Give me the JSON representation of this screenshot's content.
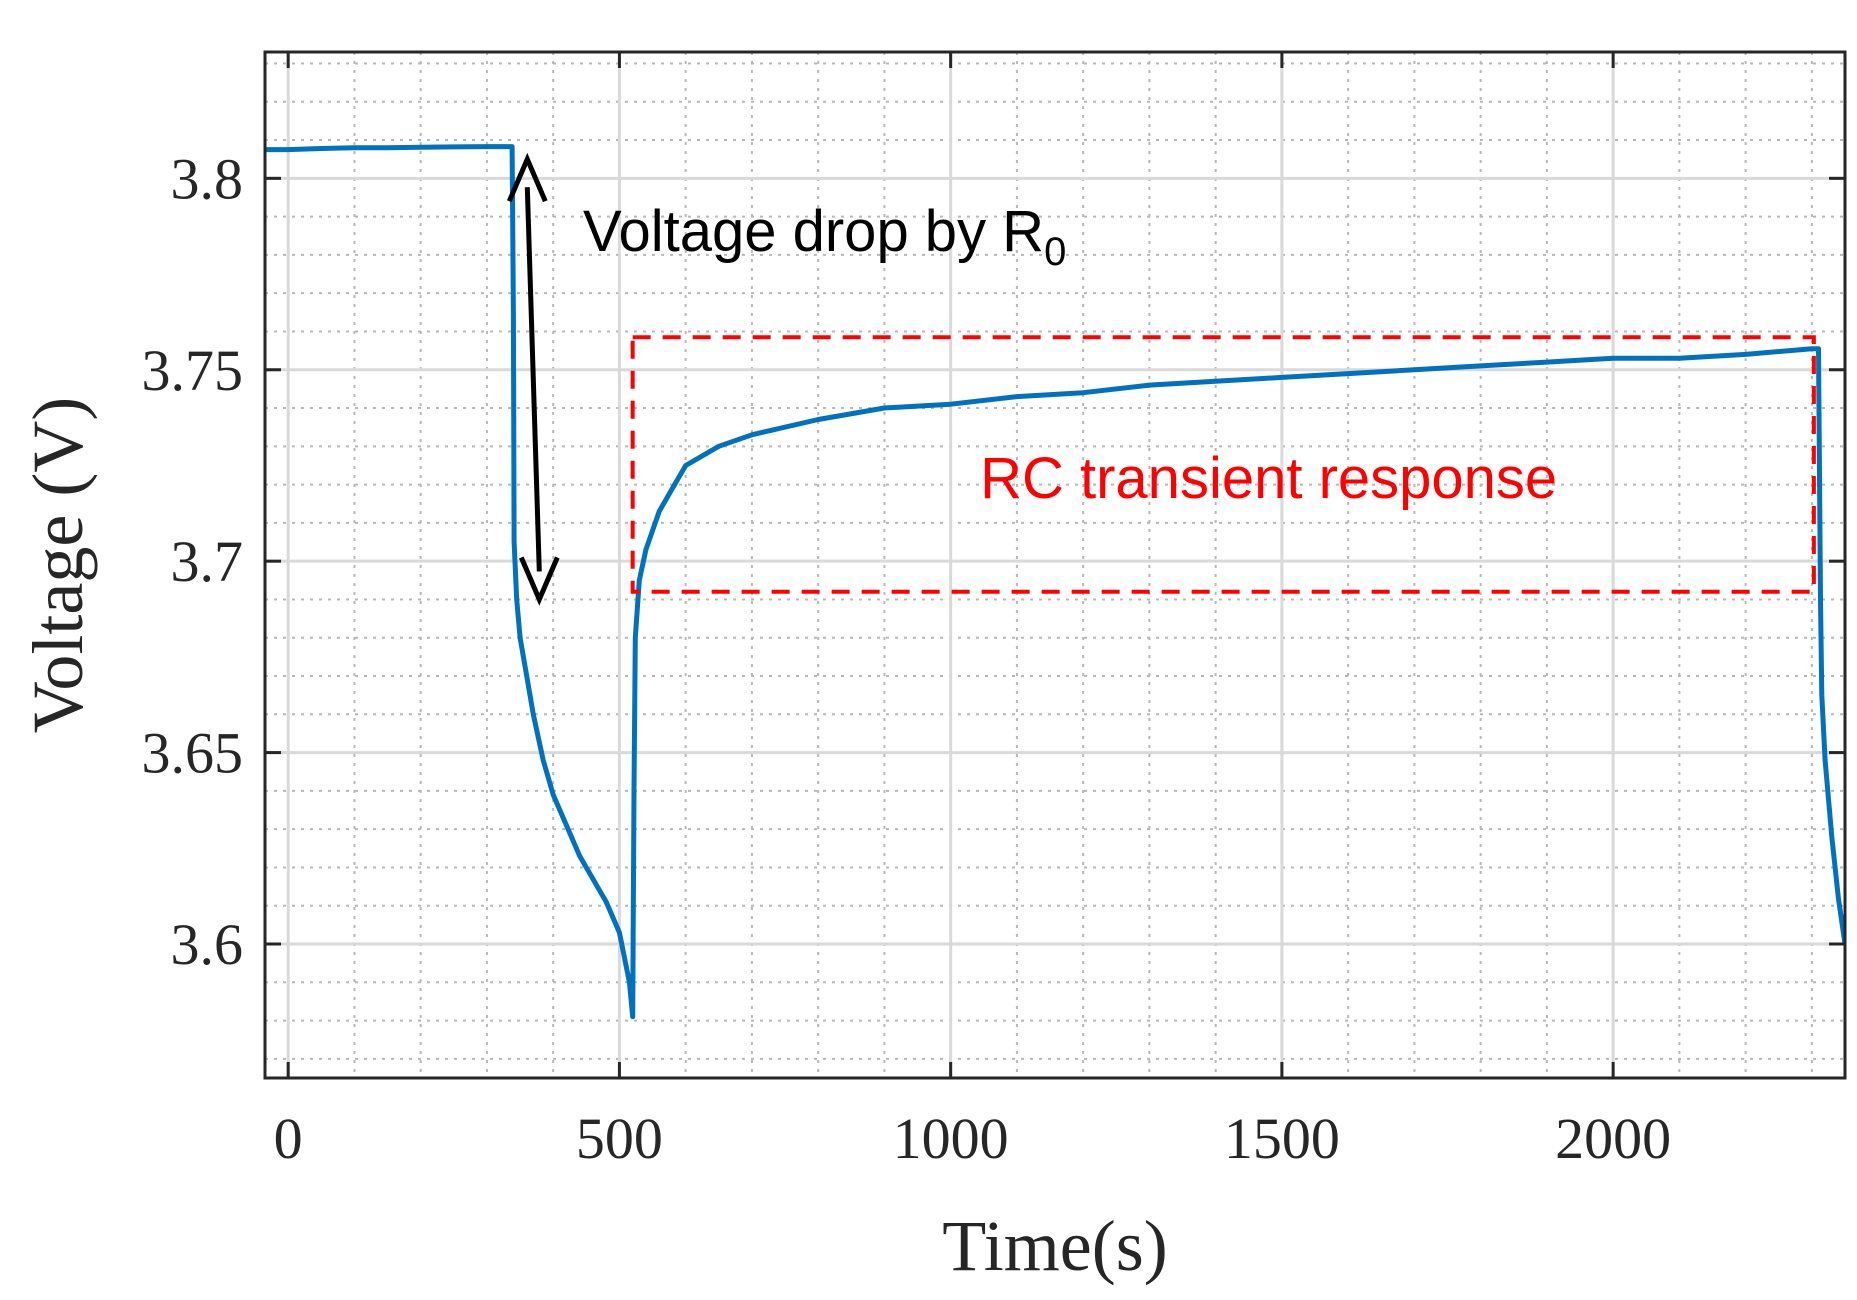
{
  "chart_data": {
    "type": "line",
    "xlabel": "Time(s)",
    "ylabel": "Voltage (V)",
    "xlim": [
      -35,
      2350
    ],
    "ylim": [
      3.565,
      3.833
    ],
    "x_ticks": [
      0,
      500,
      1000,
      1500,
      2000
    ],
    "x_tick_labels": [
      "0",
      "500",
      "1000",
      "1500",
      "2000"
    ],
    "y_ticks": [
      3.6,
      3.65,
      3.7,
      3.75,
      3.8
    ],
    "y_tick_labels": [
      "3.6",
      "3.65",
      "3.7",
      "3.75",
      "3.8"
    ],
    "x_minor_step": 100,
    "y_minor_step": 0.01,
    "grid": true,
    "series": [
      {
        "name": "Voltage",
        "color": "#0072bd",
        "points": [
          [
            -35,
            3.8075
          ],
          [
            0,
            3.8075
          ],
          [
            50,
            3.8078
          ],
          [
            100,
            3.808
          ],
          [
            150,
            3.808
          ],
          [
            200,
            3.8081
          ],
          [
            250,
            3.8082
          ],
          [
            300,
            3.8083
          ],
          [
            338,
            3.8083
          ],
          [
            340,
            3.765
          ],
          [
            341,
            3.705
          ],
          [
            345,
            3.69
          ],
          [
            350,
            3.68
          ],
          [
            360,
            3.67
          ],
          [
            370,
            3.66
          ],
          [
            385,
            3.648
          ],
          [
            400,
            3.639
          ],
          [
            420,
            3.631
          ],
          [
            440,
            3.623
          ],
          [
            460,
            3.617
          ],
          [
            480,
            3.611
          ],
          [
            500,
            3.603
          ],
          [
            515,
            3.59
          ],
          [
            520,
            3.581
          ],
          [
            522,
            3.64
          ],
          [
            524,
            3.68
          ],
          [
            530,
            3.695
          ],
          [
            540,
            3.703
          ],
          [
            560,
            3.713
          ],
          [
            580,
            3.719
          ],
          [
            600,
            3.725
          ],
          [
            650,
            3.73
          ],
          [
            700,
            3.733
          ],
          [
            800,
            3.737
          ],
          [
            900,
            3.74
          ],
          [
            1000,
            3.741
          ],
          [
            1100,
            3.743
          ],
          [
            1200,
            3.744
          ],
          [
            1300,
            3.746
          ],
          [
            1400,
            3.747
          ],
          [
            1500,
            3.748
          ],
          [
            1600,
            3.749
          ],
          [
            1700,
            3.75
          ],
          [
            1800,
            3.751
          ],
          [
            1900,
            3.752
          ],
          [
            2000,
            3.753
          ],
          [
            2100,
            3.753
          ],
          [
            2200,
            3.754
          ],
          [
            2300,
            3.7555
          ],
          [
            2310,
            3.7555
          ],
          [
            2313,
            3.69
          ],
          [
            2315,
            3.665
          ],
          [
            2320,
            3.648
          ],
          [
            2330,
            3.628
          ],
          [
            2340,
            3.612
          ],
          [
            2350,
            3.6
          ]
        ]
      }
    ],
    "annotations": {
      "arrow": {
        "x": 370,
        "y_top": 3.805,
        "y_bottom": 3.69,
        "color": "#000000"
      },
      "voltage_drop_text": {
        "main": "Voltage drop by R",
        "subscript": "0",
        "x": 445,
        "y": 3.781
      },
      "rc_box": {
        "x0": 520,
        "x1": 2303,
        "y0": 3.692,
        "y1": 3.7585,
        "color": "#ff0000"
      },
      "rc_text": {
        "text": "RC transient response",
        "x": 1480,
        "y": 3.7165
      }
    }
  }
}
